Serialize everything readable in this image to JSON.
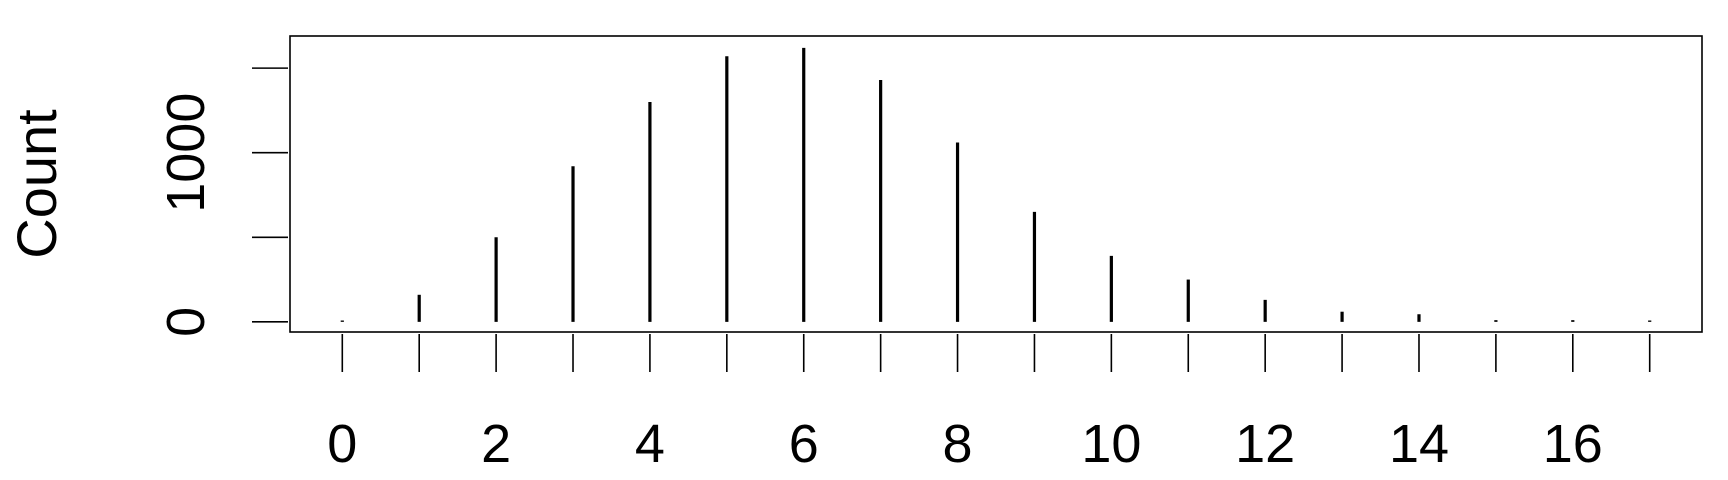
{
  "chart_data": {
    "type": "bar",
    "style": "spike",
    "title": "",
    "xlabel": "",
    "ylabel": "Count",
    "x": [
      0,
      1,
      2,
      3,
      4,
      5,
      6,
      7,
      8,
      9,
      10,
      11,
      12,
      13,
      14,
      15,
      16,
      17
    ],
    "values": [
      8,
      160,
      500,
      920,
      1300,
      1570,
      1620,
      1430,
      1060,
      650,
      390,
      250,
      130,
      60,
      45,
      10,
      10,
      8
    ],
    "xticks": [
      0,
      1,
      2,
      3,
      4,
      5,
      6,
      7,
      8,
      9,
      10,
      11,
      12,
      13,
      14,
      15,
      16,
      17
    ],
    "xtick_labels": [
      "0",
      "",
      "2",
      "",
      "4",
      "",
      "6",
      "",
      "8",
      "",
      "10",
      "",
      "12",
      "",
      "14",
      "",
      "16",
      ""
    ],
    "yticks": [
      0,
      500,
      1000,
      1500
    ],
    "ytick_labels": [
      "0",
      "",
      "1000",
      ""
    ],
    "xlim": [
      -0.68,
      17.68
    ],
    "ylim": [
      -60,
      1690
    ],
    "grid": false,
    "legend": "none",
    "colors": {
      "line": "#000000",
      "background": "#ffffff"
    }
  }
}
